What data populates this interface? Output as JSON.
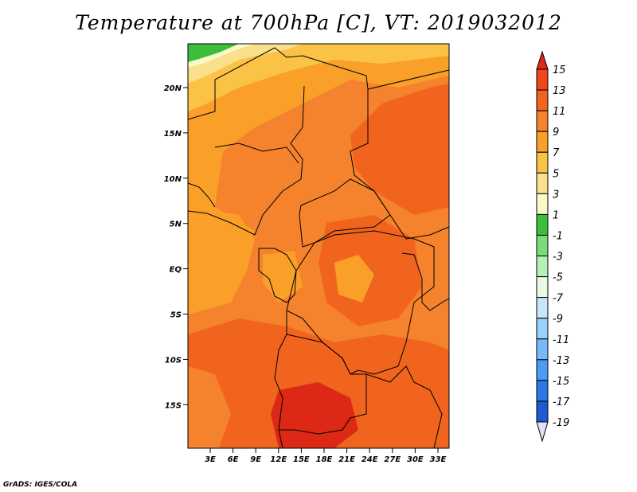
{
  "title": "Temperature at 700hPa [C], VT: 2019032012",
  "credit": "GrADS: IGES/COLA",
  "map": {
    "lat_labels": [
      "20N",
      "15N",
      "10N",
      "5N",
      "EQ",
      "5S",
      "10S",
      "15S"
    ],
    "lon_labels": [
      "3E",
      "6E",
      "9E",
      "12E",
      "15E",
      "18E",
      "21E",
      "24E",
      "27E",
      "30E",
      "33E"
    ]
  },
  "colorbar": {
    "levels": [
      "15",
      "13",
      "11",
      "9",
      "7",
      "5",
      "3",
      "1",
      "-1",
      "-3",
      "-5",
      "-7",
      "-9",
      "-11",
      "-13",
      "-15",
      "-17",
      "-19"
    ],
    "colors": [
      "#dc2814",
      "#f0461e",
      "#f0641e",
      "#f5822d",
      "#faa028",
      "#fac346",
      "#fae08c",
      "#fafac8",
      "#3cbe3c",
      "#78dc78",
      "#b4f0b4",
      "#e6fae6",
      "#c8e6fa",
      "#96d2fa",
      "#78b9fa",
      "#4b9bf5",
      "#2d78e6",
      "#1e5ad2",
      "#0a32b4",
      "#0a1e78"
    ],
    "arrow_top_color": "#dc2814",
    "arrow_bottom_color": "#e1e1fa"
  }
}
